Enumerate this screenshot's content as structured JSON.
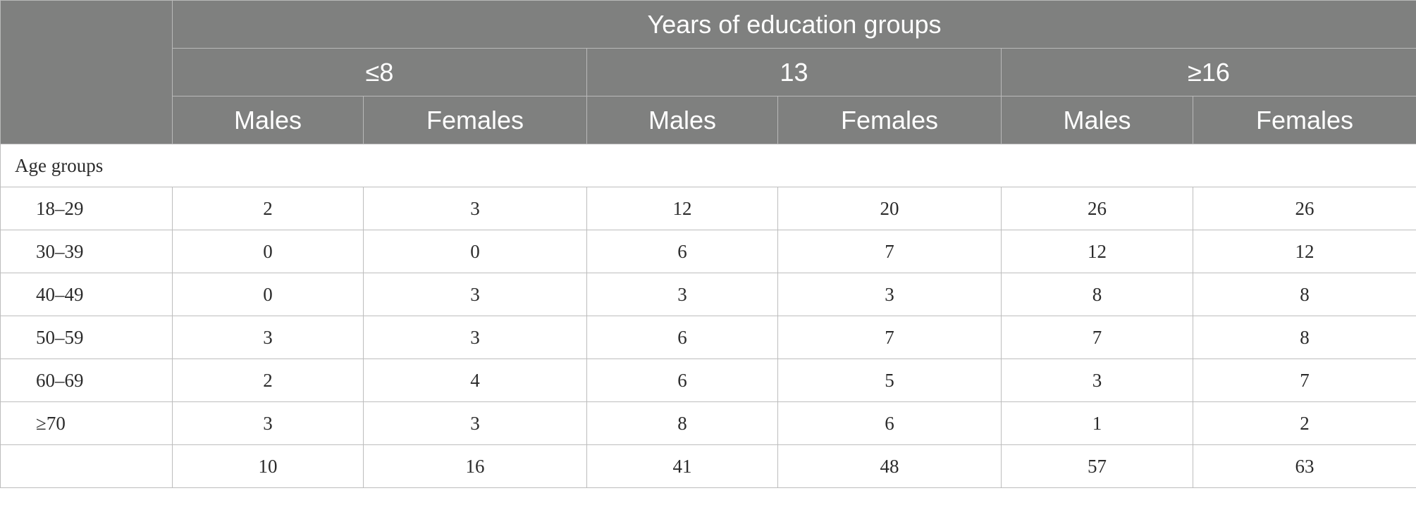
{
  "header": {
    "group_title": "Years of education groups",
    "education_groups": [
      "≤8",
      "13",
      "≥16"
    ],
    "sexes": [
      "Males",
      "Females",
      "Males",
      "Females",
      "Males",
      "Females"
    ]
  },
  "body": {
    "section_label": "Age groups",
    "rows": [
      {
        "label": "18–29",
        "values": [
          "2",
          "3",
          "12",
          "20",
          "26",
          "26"
        ]
      },
      {
        "label": "30–39",
        "values": [
          "0",
          "0",
          "6",
          "7",
          "12",
          "12"
        ]
      },
      {
        "label": "40–49",
        "values": [
          "0",
          "3",
          "3",
          "3",
          "8",
          "8"
        ]
      },
      {
        "label": "50–59",
        "values": [
          "3",
          "3",
          "6",
          "7",
          "7",
          "8"
        ]
      },
      {
        "label": "60–69",
        "values": [
          "2",
          "4",
          "6",
          "5",
          "3",
          "7"
        ]
      },
      {
        "label": "≥70",
        "values": [
          "3",
          "3",
          "8",
          "6",
          "1",
          "2"
        ]
      }
    ],
    "total_row": {
      "label": "",
      "values": [
        "10",
        "16",
        "41",
        "48",
        "57",
        "63"
      ]
    }
  },
  "colors": {
    "header_bg": "#7f807f",
    "header_text": "#ffffff",
    "grid_line": "#bdbdbd",
    "body_text": "#2b2b2b"
  }
}
